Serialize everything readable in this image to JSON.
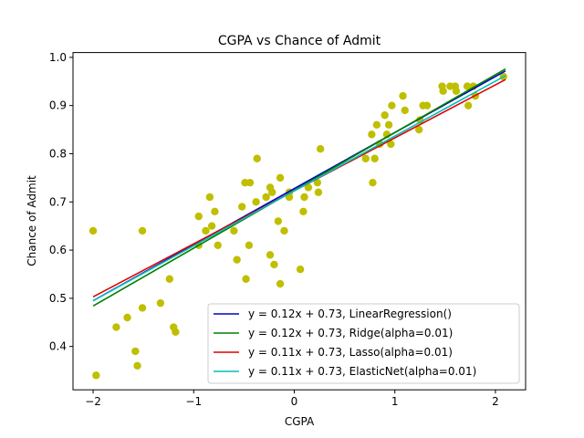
{
  "chart_data": {
    "type": "scatter",
    "title": "CGPA vs Chance of Admit",
    "xlabel": "CGPA",
    "ylabel": "Chance of Admit",
    "xlim": [
      -2.2,
      2.3
    ],
    "ylim": [
      0.31,
      1.01
    ],
    "xticks": [
      -2,
      -1,
      0,
      1,
      2
    ],
    "yticks": [
      0.4,
      0.5,
      0.6,
      0.7,
      0.8,
      0.9,
      1.0
    ],
    "xtick_labels": [
      "−2",
      "−1",
      "0",
      "1",
      "2"
    ],
    "ytick_labels": [
      "0.4",
      "0.5",
      "0.6",
      "0.7",
      "0.8",
      "0.9",
      "1.0"
    ],
    "grid": false,
    "legend_position": "lower-right",
    "scatter": {
      "color": "#bfbf00",
      "points": [
        [
          -2.0,
          0.64
        ],
        [
          -1.97,
          0.34
        ],
        [
          -1.77,
          0.44
        ],
        [
          -1.66,
          0.46
        ],
        [
          -1.58,
          0.39
        ],
        [
          -1.56,
          0.36
        ],
        [
          -1.51,
          0.64
        ],
        [
          -1.51,
          0.48
        ],
        [
          -1.33,
          0.49
        ],
        [
          -1.24,
          0.54
        ],
        [
          -1.2,
          0.44
        ],
        [
          -1.18,
          0.43
        ],
        [
          -0.95,
          0.67
        ],
        [
          -0.95,
          0.61
        ],
        [
          -0.88,
          0.64
        ],
        [
          -0.84,
          0.71
        ],
        [
          -0.82,
          0.65
        ],
        [
          -0.79,
          0.68
        ],
        [
          -0.76,
          0.61
        ],
        [
          -0.6,
          0.64
        ],
        [
          -0.57,
          0.58
        ],
        [
          -0.52,
          0.69
        ],
        [
          -0.49,
          0.74
        ],
        [
          -0.48,
          0.54
        ],
        [
          -0.45,
          0.61
        ],
        [
          -0.44,
          0.74
        ],
        [
          -0.38,
          0.7
        ],
        [
          -0.37,
          0.79
        ],
        [
          -0.28,
          0.71
        ],
        [
          -0.24,
          0.73
        ],
        [
          -0.24,
          0.59
        ],
        [
          -0.22,
          0.72
        ],
        [
          -0.2,
          0.57
        ],
        [
          -0.16,
          0.66
        ],
        [
          -0.14,
          0.75
        ],
        [
          -0.14,
          0.53
        ],
        [
          -0.1,
          0.64
        ],
        [
          -0.05,
          0.72
        ],
        [
          -0.05,
          0.71
        ],
        [
          0.06,
          0.56
        ],
        [
          0.09,
          0.68
        ],
        [
          0.1,
          0.71
        ],
        [
          0.14,
          0.73
        ],
        [
          0.23,
          0.74
        ],
        [
          0.24,
          0.72
        ],
        [
          0.26,
          0.81
        ],
        [
          0.71,
          0.79
        ],
        [
          0.77,
          0.84
        ],
        [
          0.78,
          0.74
        ],
        [
          0.8,
          0.79
        ],
        [
          0.82,
          0.86
        ],
        [
          0.85,
          0.82
        ],
        [
          0.9,
          0.88
        ],
        [
          0.92,
          0.84
        ],
        [
          0.94,
          0.86
        ],
        [
          0.96,
          0.82
        ],
        [
          0.97,
          0.9
        ],
        [
          1.08,
          0.92
        ],
        [
          1.1,
          0.89
        ],
        [
          1.24,
          0.85
        ],
        [
          1.25,
          0.87
        ],
        [
          1.28,
          0.9
        ],
        [
          1.32,
          0.9
        ],
        [
          1.47,
          0.94
        ],
        [
          1.48,
          0.93
        ],
        [
          1.55,
          0.94
        ],
        [
          1.6,
          0.94
        ],
        [
          1.61,
          0.93
        ],
        [
          1.72,
          0.94
        ],
        [
          1.73,
          0.9
        ],
        [
          1.78,
          0.94
        ],
        [
          1.8,
          0.92
        ],
        [
          2.08,
          0.96
        ]
      ]
    },
    "series": [
      {
        "name": "y = 0.12x + 0.73, LinearRegression()",
        "color": "#0000cc",
        "x": [
          -2.0,
          2.1
        ],
        "y": [
          0.495,
          0.972
        ]
      },
      {
        "name": "y = 0.12x + 0.73, Ridge(alpha=0.01)",
        "color": "#008000",
        "x": [
          -2.0,
          2.1
        ],
        "y": [
          0.484,
          0.976
        ]
      },
      {
        "name": "y = 0.11x + 0.73, Lasso(alpha=0.01)",
        "color": "#e00000",
        "x": [
          -2.0,
          2.1
        ],
        "y": [
          0.503,
          0.954
        ]
      },
      {
        "name": "y = 0.11x + 0.73, ElasticNet(alpha=0.01)",
        "color": "#00bfbf",
        "x": [
          -2.0,
          2.1
        ],
        "y": [
          0.495,
          0.962
        ]
      }
    ]
  }
}
